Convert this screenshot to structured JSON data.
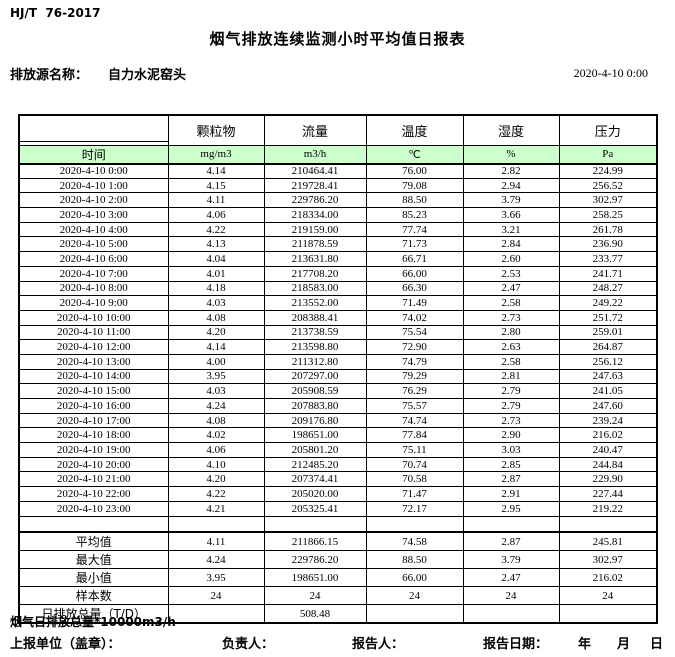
{
  "header": {
    "standard": "HJ/T  76-2017",
    "title": "烟气排放连续监测小时平均值日报表",
    "source_label": "排放源名称：",
    "source_name": "自力水泥窑头",
    "datetime": "2020-4-10  0:00"
  },
  "table": {
    "time_header": "时间",
    "columns": [
      "颗粒物",
      "流量",
      "温度",
      "湿度",
      "压力"
    ],
    "units": [
      "mg/m3",
      "m3/h",
      "℃",
      "%",
      "Pa"
    ],
    "rows": [
      {
        "time": "2020-4-10  0:00",
        "values": [
          "4.14",
          "210464.41",
          "76.00",
          "2.82",
          "224.99"
        ]
      },
      {
        "time": "2020-4-10  1:00",
        "values": [
          "4.15",
          "219728.41",
          "79.08",
          "2.94",
          "256.52"
        ]
      },
      {
        "time": "2020-4-10  2:00",
        "values": [
          "4.11",
          "229786.20",
          "88.50",
          "3.79",
          "302.97"
        ]
      },
      {
        "time": "2020-4-10  3:00",
        "values": [
          "4.06",
          "218334.00",
          "85.23",
          "3.66",
          "258.25"
        ]
      },
      {
        "time": "2020-4-10  4:00",
        "values": [
          "4.22",
          "219159.00",
          "77.74",
          "3.21",
          "261.78"
        ]
      },
      {
        "time": "2020-4-10  5:00",
        "values": [
          "4.13",
          "211878.59",
          "71.73",
          "2.84",
          "236.90"
        ]
      },
      {
        "time": "2020-4-10  6:00",
        "values": [
          "4.04",
          "213631.80",
          "66.71",
          "2.60",
          "233.77"
        ]
      },
      {
        "time": "2020-4-10  7:00",
        "values": [
          "4.01",
          "217708.20",
          "66.00",
          "2.53",
          "241.71"
        ]
      },
      {
        "time": "2020-4-10  8:00",
        "values": [
          "4.18",
          "218583.00",
          "66.30",
          "2.47",
          "248.27"
        ]
      },
      {
        "time": "2020-4-10  9:00",
        "values": [
          "4.03",
          "213552.00",
          "71.49",
          "2.58",
          "249.22"
        ]
      },
      {
        "time": "2020-4-10 10:00",
        "values": [
          "4.08",
          "208388.41",
          "74.02",
          "2.73",
          "251.72"
        ]
      },
      {
        "time": "2020-4-10 11:00",
        "values": [
          "4.20",
          "213738.59",
          "75.54",
          "2.80",
          "259.01"
        ]
      },
      {
        "time": "2020-4-10 12:00",
        "values": [
          "4.14",
          "213598.80",
          "72.90",
          "2.63",
          "264.87"
        ]
      },
      {
        "time": "2020-4-10 13:00",
        "values": [
          "4.00",
          "211312.80",
          "74.79",
          "2.58",
          "256.12"
        ]
      },
      {
        "time": "2020-4-10 14:00",
        "values": [
          "3.95",
          "207297.00",
          "79.29",
          "2.81",
          "247.63"
        ]
      },
      {
        "time": "2020-4-10 15:00",
        "values": [
          "4.03",
          "205908.59",
          "76.29",
          "2.79",
          "241.05"
        ]
      },
      {
        "time": "2020-4-10 16:00",
        "values": [
          "4.24",
          "207883.80",
          "75.57",
          "2.79",
          "247.60"
        ]
      },
      {
        "time": "2020-4-10 17:00",
        "values": [
          "4.08",
          "209176.80",
          "74.74",
          "2.73",
          "239.24"
        ]
      },
      {
        "time": "2020-4-10 18:00",
        "values": [
          "4.02",
          "198651.00",
          "77.84",
          "2.90",
          "216.02"
        ]
      },
      {
        "time": "2020-4-10 19:00",
        "values": [
          "4.06",
          "205801.20",
          "75.11",
          "3.03",
          "240.47"
        ]
      },
      {
        "time": "2020-4-10 20:00",
        "values": [
          "4.10",
          "212485.20",
          "70.74",
          "2.85",
          "244.84"
        ]
      },
      {
        "time": "2020-4-10 21:00",
        "values": [
          "4.20",
          "207374.41",
          "70.58",
          "2.87",
          "229.90"
        ]
      },
      {
        "time": "2020-4-10 22:00",
        "values": [
          "4.22",
          "205020.00",
          "71.47",
          "2.91",
          "227.44"
        ]
      },
      {
        "time": "2020-4-10 23:00",
        "values": [
          "4.21",
          "205325.41",
          "72.17",
          "2.95",
          "219.22"
        ]
      }
    ],
    "summary": [
      {
        "label": "平均值",
        "values": [
          "4.11",
          "211866.15",
          "74.58",
          "2.87",
          "245.81"
        ]
      },
      {
        "label": "最大值",
        "values": [
          "4.24",
          "229786.20",
          "88.50",
          "3.79",
          "302.97"
        ]
      },
      {
        "label": "最小值",
        "values": [
          "3.95",
          "198651.00",
          "66.00",
          "2.47",
          "216.02"
        ]
      },
      {
        "label": "样本数",
        "values": [
          "24",
          "24",
          "24",
          "24",
          "24"
        ]
      },
      {
        "label": "日排放总量（T/D）",
        "values": [
          "",
          "508.48",
          "",
          "",
          ""
        ]
      }
    ]
  },
  "footer": {
    "note": "烟气日排放总量*10000m3/h",
    "report_unit": "上报单位（盖章）：",
    "responsible": "负责人：",
    "reporter": "报告人：",
    "report_date": "报告日期：",
    "year": "年",
    "month": "月",
    "day": "日"
  },
  "colors": {
    "header_green": "#ccffcc",
    "border": "#000000"
  }
}
